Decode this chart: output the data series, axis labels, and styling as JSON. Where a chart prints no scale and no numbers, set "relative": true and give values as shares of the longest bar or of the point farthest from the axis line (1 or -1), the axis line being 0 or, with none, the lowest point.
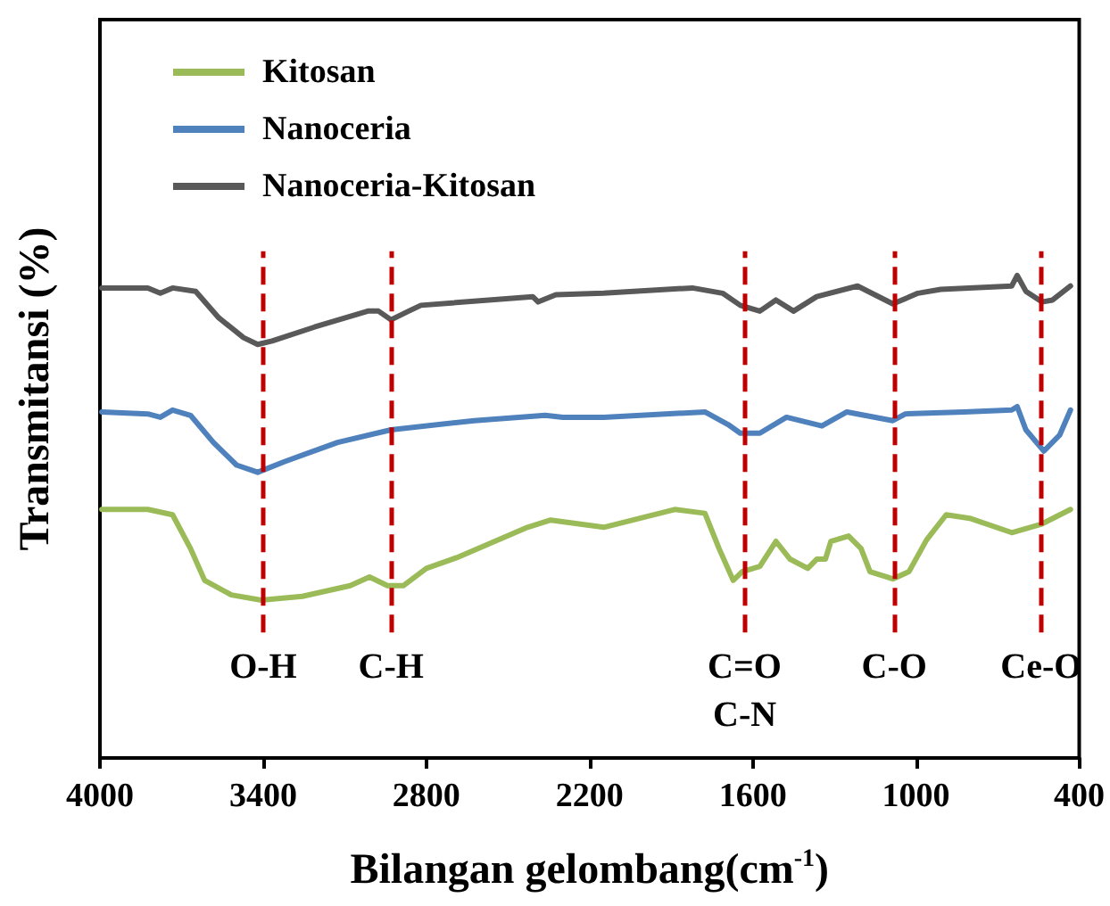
{
  "chart_data": {
    "type": "line",
    "relative": true,
    "xlabel": "Bilangan gelombang(cm$^{-1}$)",
    "ylabel": "Transmitansi (%)",
    "xlim": [
      4000,
      400
    ],
    "xticks": [
      4000,
      3400,
      2800,
      2200,
      1600,
      1000,
      400
    ],
    "tick_labels": "x",
    "grid": false,
    "legend": "top left",
    "marker": "none",
    "line_style": "solid",
    "series": [
      {
        "name": "Kitosan",
        "color": "#9bbb59",
        "x": [
          3993,
          3824,
          3733,
          3667,
          3615,
          3517,
          3407,
          3256,
          3080,
          3009,
          2943,
          2885,
          2800,
          2689,
          2428,
          2343,
          2148,
          1887,
          1776,
          1724,
          1672,
          1639,
          1574,
          1515,
          1463,
          1398,
          1365,
          1333,
          1313,
          1248,
          1202,
          1169,
          1085,
          1026,
          961,
          889,
          798,
          648,
          537,
          432
        ],
        "values": [
          0.515,
          0.515,
          0.504,
          0.434,
          0.368,
          0.338,
          0.327,
          0.335,
          0.357,
          0.375,
          0.357,
          0.357,
          0.393,
          0.415,
          0.478,
          0.493,
          0.478,
          0.515,
          0.507,
          0.434,
          0.368,
          0.386,
          0.397,
          0.449,
          0.412,
          0.393,
          0.412,
          0.412,
          0.449,
          0.46,
          0.434,
          0.386,
          0.371,
          0.386,
          0.452,
          0.504,
          0.496,
          0.467,
          0.485,
          0.515
        ]
      },
      {
        "name": "Nanoceria",
        "color": "#4f81bd",
        "x": [
          3993,
          3824,
          3778,
          3733,
          3667,
          3583,
          3498,
          3420,
          3322,
          3126,
          2930,
          2624,
          2363,
          2298,
          2148,
          1776,
          1691,
          1646,
          1574,
          1476,
          1346,
          1254,
          1085,
          1039,
          824,
          648,
          628,
          596,
          530,
          472,
          432
        ],
        "values": [
          0.717,
          0.713,
          0.706,
          0.721,
          0.71,
          0.654,
          0.607,
          0.592,
          0.614,
          0.654,
          0.68,
          0.699,
          0.71,
          0.706,
          0.706,
          0.717,
          0.691,
          0.673,
          0.673,
          0.706,
          0.688,
          0.717,
          0.699,
          0.713,
          0.717,
          0.721,
          0.728,
          0.68,
          0.636,
          0.669,
          0.721
        ]
      },
      {
        "name": "Nanoceria-Kitosan",
        "color": "#595959",
        "x": [
          3993,
          3824,
          3778,
          3733,
          3648,
          3563,
          3472,
          3420,
          3367,
          3211,
          3015,
          2976,
          2930,
          2865,
          2820,
          2409,
          2389,
          2324,
          2148,
          1822,
          1711,
          1646,
          1574,
          1515,
          1450,
          1365,
          1215,
          1085,
          993,
          909,
          648,
          628,
          596,
          537,
          498,
          432
        ],
        "values": [
          0.974,
          0.974,
          0.963,
          0.974,
          0.967,
          0.912,
          0.871,
          0.857,
          0.864,
          0.893,
          0.926,
          0.926,
          0.908,
          0.926,
          0.938,
          0.956,
          0.945,
          0.96,
          0.963,
          0.974,
          0.963,
          0.938,
          0.926,
          0.949,
          0.926,
          0.956,
          0.978,
          0.941,
          0.963,
          0.971,
          0.978,
          1,
          0.967,
          0.945,
          0.949,
          0.978
        ]
      }
    ],
    "ref_lines": [
      {
        "axis": "x",
        "value": 3400,
        "label": "O-H",
        "color": "#c00000",
        "line_style": "dashed"
      },
      {
        "axis": "x",
        "value": 2930,
        "label": "C-H",
        "color": "#c00000",
        "line_style": "dashed"
      },
      {
        "axis": "x",
        "value": 1630,
        "label": "C=O\nC-N",
        "color": "#c00000",
        "line_style": "dashed"
      },
      {
        "axis": "x",
        "value": 1080,
        "label": "C-O",
        "color": "#c00000",
        "line_style": "dashed"
      },
      {
        "axis": "x",
        "value": 540,
        "label": "Ce-O",
        "color": "#c00000",
        "line_style": "dashed"
      }
    ]
  }
}
